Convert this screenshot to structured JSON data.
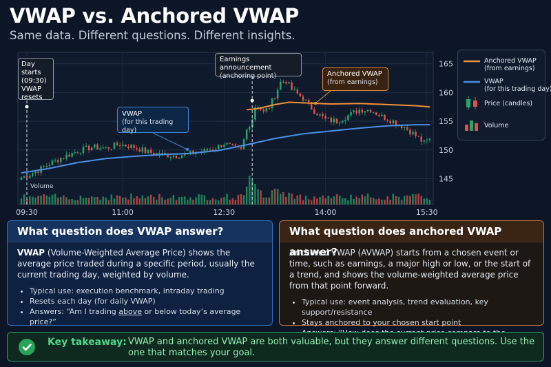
{
  "page": {
    "title": "VWAP vs. Anchored VWAP",
    "subtitle": "Same data. Different questions. Different insights."
  },
  "chart_data": {
    "type": "candlestick",
    "x_tick_labels": [
      "09:30",
      "11:00",
      "12:30",
      "14:00",
      "15:30"
    ],
    "y_ticks": [
      145,
      150,
      155,
      160,
      165
    ],
    "ylim": [
      140.5,
      167
    ],
    "grid": true,
    "legend_position": "right",
    "series": [
      {
        "name": "Anchored VWAP (from earnings)",
        "color": "#f0913a"
      },
      {
        "name": "VWAP (for this trading day)",
        "color": "#4a90e8"
      },
      {
        "name": "Price (candles)"
      },
      {
        "name": "Volume"
      }
    ],
    "price_path": [
      [
        0,
        145.2
      ],
      [
        5,
        146.2
      ],
      [
        10,
        147.6
      ],
      [
        15,
        148.8
      ],
      [
        20,
        149.8
      ],
      [
        25,
        150.5
      ],
      [
        30,
        150.3
      ],
      [
        35,
        151.0
      ],
      [
        40,
        150.5
      ],
      [
        45,
        149.6
      ],
      [
        50,
        149.2
      ],
      [
        55,
        149.0
      ],
      [
        60,
        149.4
      ],
      [
        65,
        149.8
      ],
      [
        70,
        150.6
      ],
      [
        72,
        151.2
      ],
      [
        75,
        150.4
      ],
      [
        78,
        149.9
      ],
      [
        80,
        153.5
      ],
      [
        82,
        155.5
      ],
      [
        83,
        157.6
      ],
      [
        84,
        157.8
      ],
      [
        86,
        156.5
      ],
      [
        88,
        157.5
      ],
      [
        90,
        159.5
      ],
      [
        92,
        161.8
      ],
      [
        94,
        162.0
      ],
      [
        96,
        160.5
      ],
      [
        100,
        159.0
      ],
      [
        104,
        156.8
      ],
      [
        108,
        155.3
      ],
      [
        112,
        155.0
      ],
      [
        116,
        156.0
      ],
      [
        120,
        157.0
      ],
      [
        124,
        157.0
      ],
      [
        128,
        155.8
      ],
      [
        132,
        155.0
      ],
      [
        136,
        154.0
      ],
      [
        140,
        152.5
      ],
      [
        143,
        151.2
      ],
      [
        145,
        151.8
      ]
    ],
    "vwap_path": [
      [
        0,
        146.0
      ],
      [
        10,
        146.8
      ],
      [
        20,
        147.8
      ],
      [
        30,
        148.5
      ],
      [
        40,
        148.9
      ],
      [
        50,
        149.2
      ],
      [
        60,
        149.4
      ],
      [
        70,
        149.9
      ],
      [
        80,
        150.9
      ],
      [
        90,
        152.0
      ],
      [
        100,
        152.8
      ],
      [
        110,
        153.3
      ],
      [
        120,
        153.8
      ],
      [
        130,
        154.2
      ],
      [
        140,
        154.4
      ],
      [
        145,
        154.4
      ]
    ],
    "avwap_path": [
      [
        80,
        157.0
      ],
      [
        84,
        157.2
      ],
      [
        90,
        157.9
      ],
      [
        95,
        158.3
      ],
      [
        100,
        158.2
      ],
      [
        110,
        158.0
      ],
      [
        120,
        158.1
      ],
      [
        130,
        157.9
      ],
      [
        140,
        157.7
      ],
      [
        145,
        157.5
      ]
    ],
    "annotations": [
      {
        "title": "Day starts",
        "lines": [
          "(09:30)",
          "VWAP resets"
        ]
      },
      {
        "title": "VWAP",
        "lines": [
          "(for this trading day)"
        ]
      },
      {
        "title": "Earnings announcement",
        "lines": [
          "(anchoring point)"
        ]
      },
      {
        "title": "Anchored VWAP",
        "lines": [
          "(from earnings)"
        ]
      },
      {
        "title": "Volume",
        "lines": []
      }
    ]
  },
  "legend": {
    "items": [
      {
        "title": "Anchored VWAP",
        "sub": "(from earnings)"
      },
      {
        "title": "VWAP",
        "sub": "(for this trading day)"
      },
      {
        "title": "Price (candles)",
        "sub": ""
      },
      {
        "title": "Volume",
        "sub": ""
      }
    ]
  },
  "panels": {
    "vwap": {
      "heading": "What question does VWAP answer?",
      "lead_bold": "VWAP",
      "lead_rest": " (Volume-Weighted Average Price) shows the average price traded during a specific period, usually the current trading day, weighted by volume.",
      "bullet1": "Typical use: execution benchmark, intraday trading",
      "bullet2": "Resets each day (for daily VWAP)",
      "bullet3_pre": "Answers: “Am I trading ",
      "bullet3_u": "above",
      "bullet3_post": " or below today’s average price?”"
    },
    "avwap": {
      "heading": "What question does anchored VWAP answer?",
      "lead": "Anchored VWAP (AVWAP) starts from a chosen event or time, such as earnings, a major high or low, or the start of a trend, and shows the volume-weighted average price from that point forward.",
      "bullet1": "Typical use: event analysis, trend evaluation, key support/resistance",
      "bullet2": "Stays anchored to your chosen start point",
      "bullet3": "Answers: “How does the current price compare to the average price since this important event?”"
    }
  },
  "takeaway": {
    "label": "Key takeaway:",
    "text": "VWAP and anchored VWAP are both valuable, but they answer different questions. Use the one that matches your goal."
  },
  "colors": {
    "up": "#26a66a",
    "down": "#e0504a",
    "vwap": "#4a90e8",
    "avwap": "#f0913a"
  }
}
